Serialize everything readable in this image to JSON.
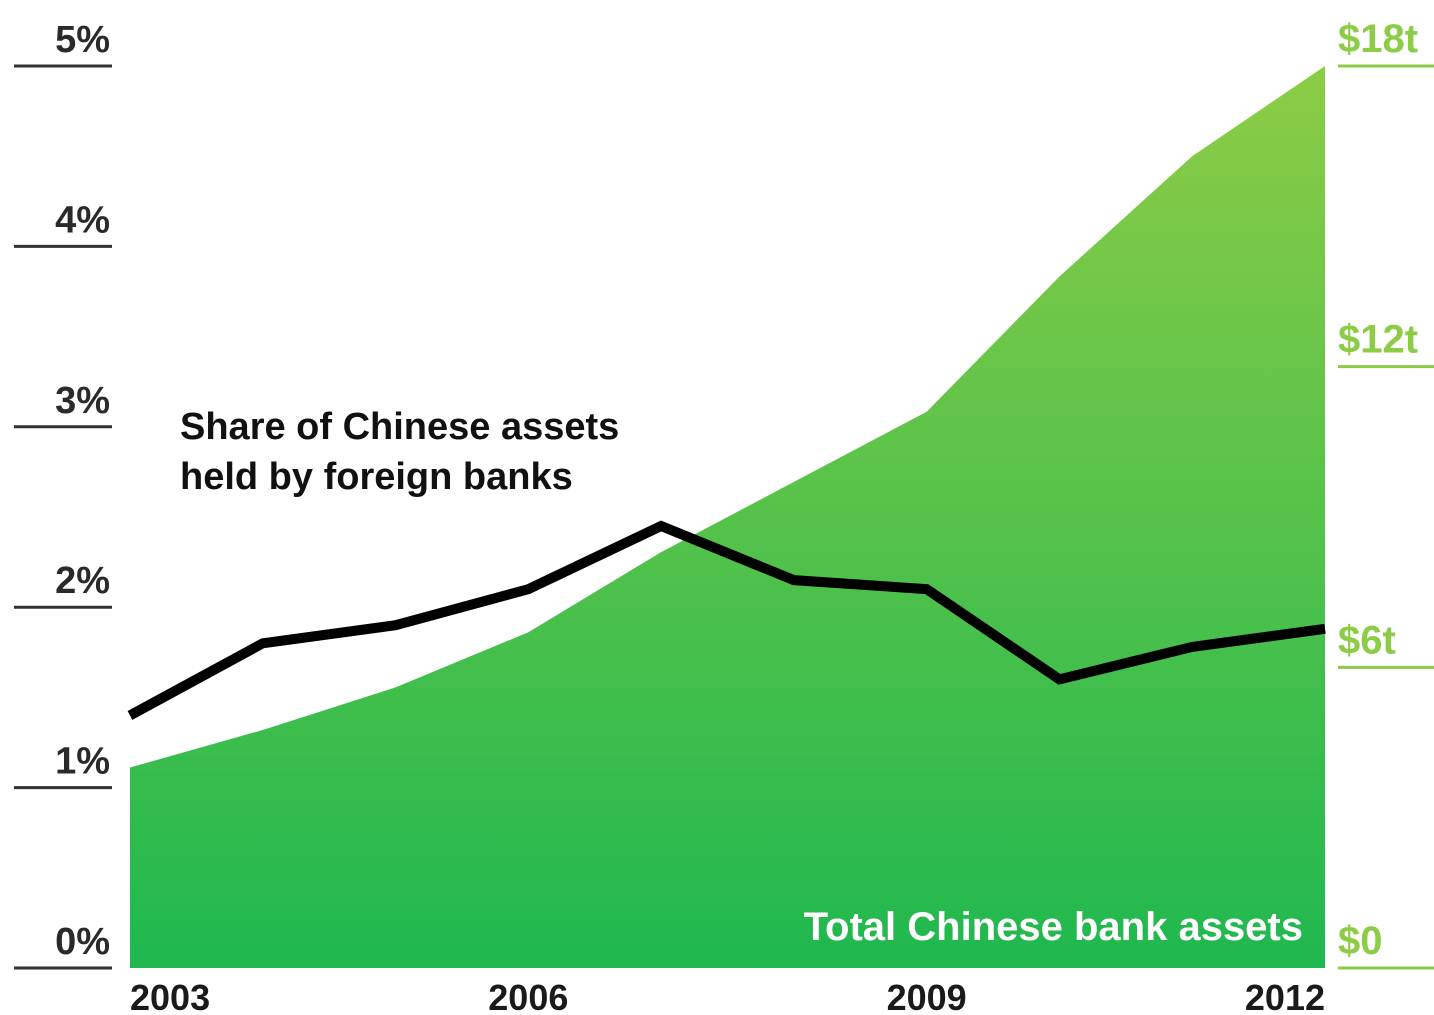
{
  "colors": {
    "area_top": "#8ccc46",
    "area_bottom": "#1fb84f",
    "share_line": "#000000",
    "right_axis": "#8ccc46",
    "left_axis_rule": "#333333"
  },
  "chart_data": {
    "type": "area",
    "x_ticks": [
      "2003",
      "2006",
      "2009",
      "2012"
    ],
    "left_axis": {
      "ticks": [
        "0%",
        "1%",
        "2%",
        "3%",
        "4%",
        "5%"
      ],
      "ylim": [
        0,
        5
      ]
    },
    "right_axis": {
      "ticks": [
        "$0",
        "$6t",
        "$12t",
        "$18t"
      ],
      "ylim": [
        0,
        18
      ]
    },
    "x": [
      2003,
      2004,
      2005,
      2006,
      2007,
      2008,
      2009,
      2010,
      2011,
      2012
    ],
    "series": [
      {
        "name": "Share of Chinese assets held by foreign banks",
        "label_lines": [
          "Share of Chinese assets",
          "held by foreign banks"
        ],
        "type": "line",
        "axis": "left",
        "values": [
          1.4,
          1.8,
          1.9,
          2.1,
          2.45,
          2.15,
          2.1,
          1.6,
          1.78,
          1.88
        ]
      },
      {
        "name": "Total Chinese bank assets",
        "type": "area",
        "axis": "right",
        "values": [
          4.0,
          4.75,
          5.6,
          6.7,
          8.3,
          9.7,
          11.1,
          13.8,
          16.2,
          18.0
        ]
      }
    ]
  }
}
